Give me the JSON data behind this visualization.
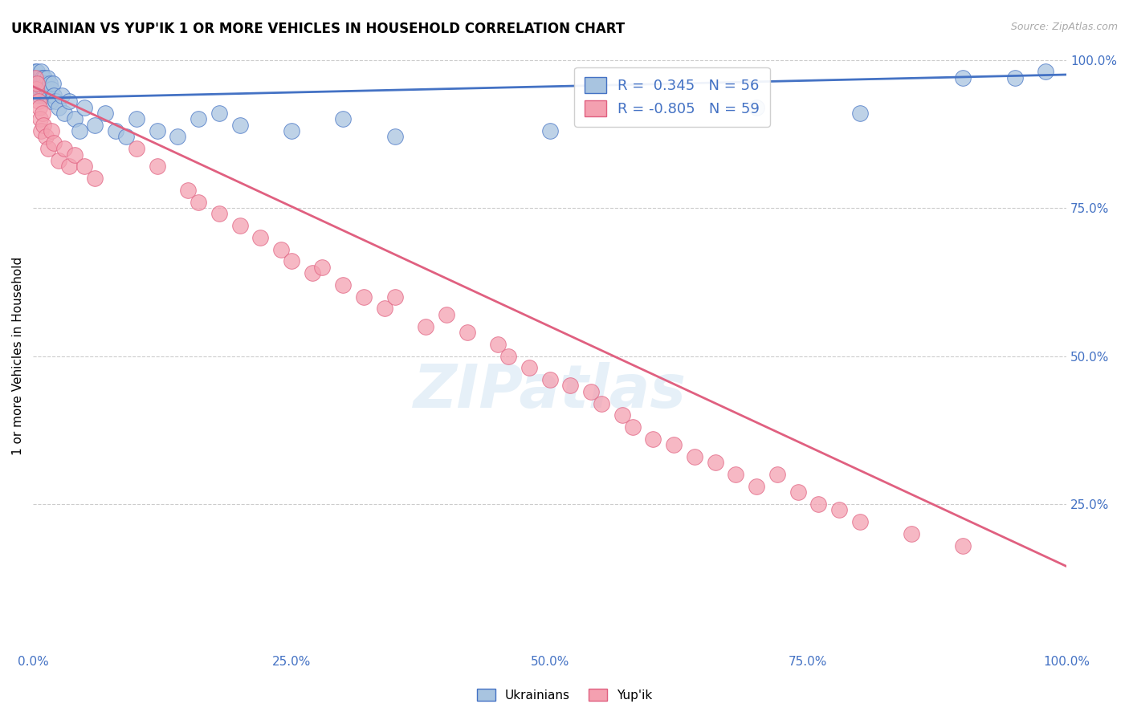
{
  "title": "UKRAINIAN VS YUP'IK 1 OR MORE VEHICLES IN HOUSEHOLD CORRELATION CHART",
  "source": "Source: ZipAtlas.com",
  "ylabel": "1 or more Vehicles in Household",
  "watermark": "ZIPatlas",
  "legend_ukrainian": "Ukrainians",
  "legend_yupik": "Yup'ik",
  "R_ukrainian": 0.345,
  "N_ukrainian": 56,
  "R_yupik": -0.805,
  "N_yupik": 59,
  "ukrainian_color": "#a8c4e0",
  "yupik_color": "#f4a0b0",
  "trendline_ukrainian_color": "#4472c4",
  "trendline_yupik_color": "#e06080",
  "background_color": "#ffffff",
  "ukrainian_points": [
    [
      0.001,
      0.96
    ],
    [
      0.002,
      0.98
    ],
    [
      0.003,
      0.95
    ],
    [
      0.003,
      0.97
    ],
    [
      0.004,
      0.96
    ],
    [
      0.004,
      0.98
    ],
    [
      0.005,
      0.95
    ],
    [
      0.005,
      0.97
    ],
    [
      0.006,
      0.96
    ],
    [
      0.006,
      0.94
    ],
    [
      0.007,
      0.97
    ],
    [
      0.007,
      0.95
    ],
    [
      0.008,
      0.96
    ],
    [
      0.008,
      0.98
    ],
    [
      0.009,
      0.95
    ],
    [
      0.009,
      0.97
    ],
    [
      0.01,
      0.96
    ],
    [
      0.01,
      0.94
    ],
    [
      0.011,
      0.97
    ],
    [
      0.011,
      0.95
    ],
    [
      0.012,
      0.96
    ],
    [
      0.013,
      0.94
    ],
    [
      0.014,
      0.97
    ],
    [
      0.015,
      0.95
    ],
    [
      0.016,
      0.96
    ],
    [
      0.017,
      0.93
    ],
    [
      0.018,
      0.95
    ],
    [
      0.019,
      0.96
    ],
    [
      0.02,
      0.94
    ],
    [
      0.022,
      0.93
    ],
    [
      0.025,
      0.92
    ],
    [
      0.028,
      0.94
    ],
    [
      0.03,
      0.91
    ],
    [
      0.035,
      0.93
    ],
    [
      0.04,
      0.9
    ],
    [
      0.045,
      0.88
    ],
    [
      0.05,
      0.92
    ],
    [
      0.06,
      0.89
    ],
    [
      0.07,
      0.91
    ],
    [
      0.08,
      0.88
    ],
    [
      0.09,
      0.87
    ],
    [
      0.1,
      0.9
    ],
    [
      0.12,
      0.88
    ],
    [
      0.14,
      0.87
    ],
    [
      0.16,
      0.9
    ],
    [
      0.18,
      0.91
    ],
    [
      0.2,
      0.89
    ],
    [
      0.25,
      0.88
    ],
    [
      0.3,
      0.9
    ],
    [
      0.35,
      0.87
    ],
    [
      0.5,
      0.88
    ],
    [
      0.7,
      0.92
    ],
    [
      0.8,
      0.91
    ],
    [
      0.9,
      0.97
    ],
    [
      0.95,
      0.97
    ],
    [
      0.98,
      0.98
    ]
  ],
  "yupik_points": [
    [
      0.002,
      0.97
    ],
    [
      0.003,
      0.95
    ],
    [
      0.004,
      0.96
    ],
    [
      0.005,
      0.93
    ],
    [
      0.006,
      0.92
    ],
    [
      0.007,
      0.9
    ],
    [
      0.008,
      0.88
    ],
    [
      0.009,
      0.91
    ],
    [
      0.01,
      0.89
    ],
    [
      0.012,
      0.87
    ],
    [
      0.015,
      0.85
    ],
    [
      0.018,
      0.88
    ],
    [
      0.02,
      0.86
    ],
    [
      0.025,
      0.83
    ],
    [
      0.03,
      0.85
    ],
    [
      0.035,
      0.82
    ],
    [
      0.04,
      0.84
    ],
    [
      0.05,
      0.82
    ],
    [
      0.06,
      0.8
    ],
    [
      0.1,
      0.85
    ],
    [
      0.12,
      0.82
    ],
    [
      0.15,
      0.78
    ],
    [
      0.16,
      0.76
    ],
    [
      0.18,
      0.74
    ],
    [
      0.2,
      0.72
    ],
    [
      0.22,
      0.7
    ],
    [
      0.24,
      0.68
    ],
    [
      0.25,
      0.66
    ],
    [
      0.27,
      0.64
    ],
    [
      0.28,
      0.65
    ],
    [
      0.3,
      0.62
    ],
    [
      0.32,
      0.6
    ],
    [
      0.34,
      0.58
    ],
    [
      0.35,
      0.6
    ],
    [
      0.38,
      0.55
    ],
    [
      0.4,
      0.57
    ],
    [
      0.42,
      0.54
    ],
    [
      0.45,
      0.52
    ],
    [
      0.46,
      0.5
    ],
    [
      0.48,
      0.48
    ],
    [
      0.5,
      0.46
    ],
    [
      0.52,
      0.45
    ],
    [
      0.54,
      0.44
    ],
    [
      0.55,
      0.42
    ],
    [
      0.57,
      0.4
    ],
    [
      0.58,
      0.38
    ],
    [
      0.6,
      0.36
    ],
    [
      0.62,
      0.35
    ],
    [
      0.64,
      0.33
    ],
    [
      0.66,
      0.32
    ],
    [
      0.68,
      0.3
    ],
    [
      0.7,
      0.28
    ],
    [
      0.72,
      0.3
    ],
    [
      0.74,
      0.27
    ],
    [
      0.76,
      0.25
    ],
    [
      0.78,
      0.24
    ],
    [
      0.8,
      0.22
    ],
    [
      0.85,
      0.2
    ],
    [
      0.9,
      0.18
    ]
  ]
}
